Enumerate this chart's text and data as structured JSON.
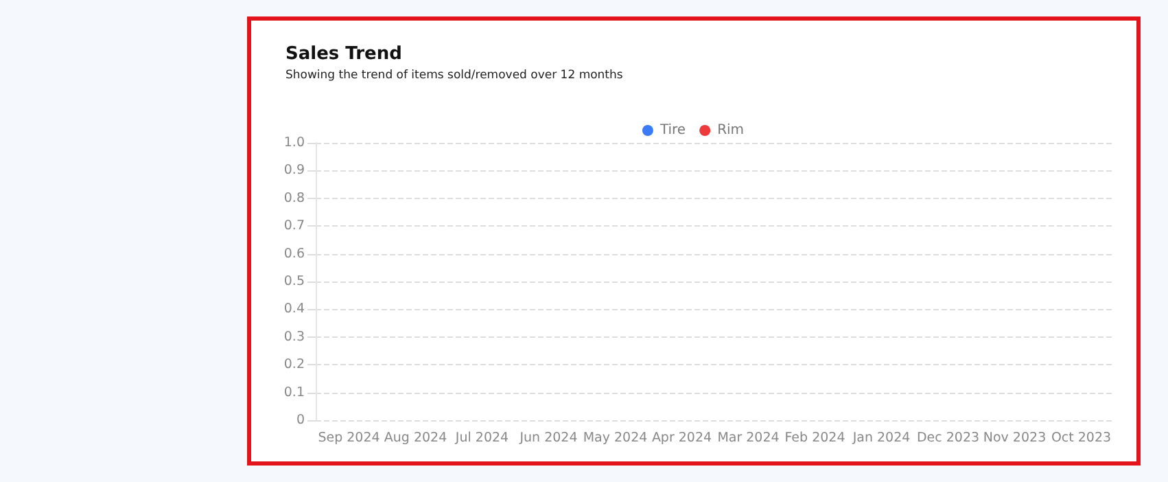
{
  "chart_data": {
    "type": "line",
    "title": "Sales Trend",
    "subtitle": "Showing the trend of items sold/removed over 12 months",
    "categories": [
      "Sep 2024",
      "Aug 2024",
      "Jul 2024",
      "Jun 2024",
      "May 2024",
      "Apr 2024",
      "Mar 2024",
      "Feb 2024",
      "Jan 2024",
      "Dec 2023",
      "Nov 2023",
      "Oct 2023"
    ],
    "series": [
      {
        "name": "Tire",
        "color": "#3b7bf6",
        "values": [
          null,
          null,
          null,
          null,
          null,
          null,
          null,
          null,
          null,
          null,
          null,
          null
        ]
      },
      {
        "name": "Rim",
        "color": "#ee3a3a",
        "values": [
          null,
          null,
          null,
          null,
          null,
          null,
          null,
          null,
          null,
          null,
          null,
          null
        ]
      }
    ],
    "ylim": [
      0,
      1.0
    ],
    "yticks": [
      0,
      0.1,
      0.2,
      0.3,
      0.4,
      0.5,
      0.6,
      0.7,
      0.8,
      0.9,
      {
        "value": 1.0,
        "label": "1.0"
      }
    ],
    "grid": "y",
    "legend": "top"
  }
}
